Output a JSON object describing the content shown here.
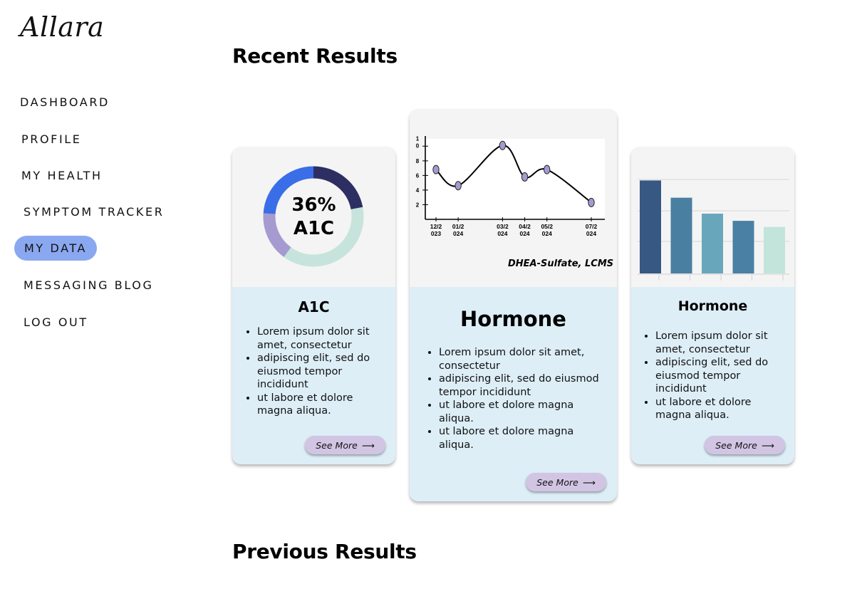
{
  "app": {
    "logo": "Allara"
  },
  "nav": {
    "items": [
      {
        "label": "DASHBOARD",
        "active": false
      },
      {
        "label": "PROFILE",
        "active": false
      },
      {
        "label": "MY HEALTH",
        "active": false
      },
      {
        "label": "SYMPTOM TRACKER",
        "active": false
      },
      {
        "label": "MY DATA",
        "active": true
      },
      {
        "label": "MESSAGING BLOG",
        "active": false
      },
      {
        "label": "LOG OUT",
        "active": false
      }
    ]
  },
  "sections": {
    "recent": "Recent Results",
    "previous": "Previous Results"
  },
  "cards": [
    {
      "title": "A1C",
      "donut": {
        "value": "36%",
        "label": "A1C",
        "segments": [
          {
            "fraction": 0.22,
            "color": "#2d2f63"
          },
          {
            "fraction": 0.38,
            "color": "#c7e4dc"
          },
          {
            "fraction": 0.16,
            "color": "#a59bd0"
          },
          {
            "fraction": 0.24,
            "color": "#3a6ee8"
          }
        ]
      },
      "bullets": [
        "Lorem ipsum dolor sit amet, consectetur",
        "adipiscing elit, sed do eiusmod tempor incididunt",
        "ut labore et dolore magna aliqua."
      ],
      "button": "See More",
      "arrow": "⟶"
    },
    {
      "title": "Hormone",
      "caption": "DHEA-Sulfate, LCMS",
      "bullets": [
        "Lorem ipsum dolor sit amet, consectetur",
        "adipiscing elit, sed do eiusmod tempor incididunt",
        "ut labore et dolore magna aliqua.",
        "ut labore et dolore magna aliqua."
      ],
      "button": "See More",
      "arrow": "⟶"
    },
    {
      "title": "Hormone",
      "bullets": [
        "Lorem ipsum dolor sit amet, consectetur",
        "adipiscing elit, sed do eiusmod tempor incididunt",
        "ut labore et dolore magna aliqua."
      ],
      "button": "See More",
      "arrow": "⟶"
    }
  ],
  "chart_data": [
    {
      "type": "line",
      "x": [
        "12/2023",
        "01/2024",
        "03/2024",
        "04/2024",
        "05/2024",
        "07/2024"
      ],
      "x_tick_lines": [
        [
          "12/2",
          "023"
        ],
        [
          "01/2",
          "024"
        ],
        [
          "03/2",
          "024"
        ],
        [
          "04/2",
          "024"
        ],
        [
          "05/2",
          "024"
        ],
        [
          "07/2",
          "024"
        ]
      ],
      "x_positions": [
        0,
        1,
        3,
        4,
        5,
        7
      ],
      "values": [
        6.8,
        4.6,
        10.1,
        5.8,
        6.8,
        2.3
      ],
      "yticks": [
        "2",
        "4",
        "6",
        "8",
        [
          "1",
          "0"
        ]
      ],
      "ylim": [
        0,
        11
      ],
      "line_color": "#000000",
      "marker_color": "#a59bd0",
      "caption": "DHEA-Sulfate, LCMS"
    },
    {
      "type": "bar",
      "values": [
        35,
        28.5,
        22.5,
        19.8,
        17.5
      ],
      "ylim": [
        0,
        41
      ],
      "colors": [
        "#365882",
        "#497fa1",
        "#68a7bb",
        "#4a80a4",
        "#c2e4da"
      ],
      "grid": true
    }
  ]
}
